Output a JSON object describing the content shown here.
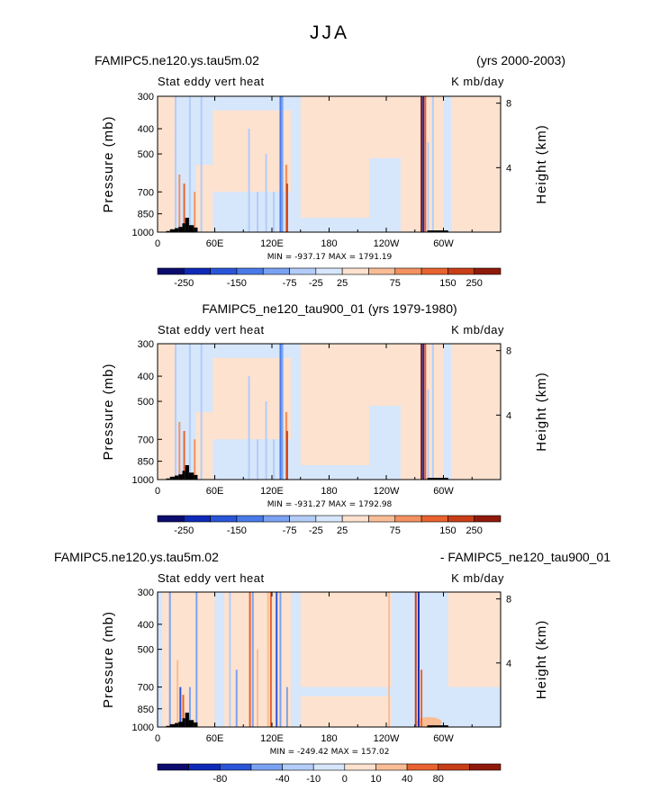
{
  "figure_title": "JJA",
  "colors": {
    "div12": [
      "#0b0c6e",
      "#0f2ab8",
      "#2a55d8",
      "#4a7ae8",
      "#7ba2f2",
      "#b3cdf8",
      "#d6e6fb",
      "#fde2cf",
      "#f9bd96",
      "#f39260",
      "#e8632f",
      "#c83e17",
      "#8f1a0a"
    ],
    "div11": [
      "#0b0c6e",
      "#0f2ab8",
      "#2a55d8",
      "#7ba2f2",
      "#b3cdf8",
      "#d6e6fb",
      "#fde2cf",
      "#f9bd96",
      "#e8632f",
      "#c83e17",
      "#8f1a0a"
    ],
    "topography": "#000000"
  },
  "chart_data": [
    {
      "type": "heatmap",
      "left_title": "FAMIPC5.ne120.ys.tau5m.02",
      "right_title": "(yrs 2000-2003)",
      "center_title": "",
      "variable_label": "Stat eddy vert heat",
      "units": "K mb/day",
      "ylabel": "Pressure (mb)",
      "ylabel_right": "Height (km)",
      "x_ticks": [
        "0",
        "60E",
        "120E",
        "180",
        "120W",
        "60W"
      ],
      "y_ticks": [
        "300",
        "400",
        "500",
        "700",
        "850",
        "1000"
      ],
      "height_ticks": [
        "8",
        "4"
      ],
      "stats_text": "MIN = -937.17   MAX = 1791.19",
      "colorbar_labels": [
        "-250",
        "-150",
        "-75",
        "-25",
        "25",
        "75",
        "150",
        "250"
      ],
      "levels": [
        -250,
        -200,
        -150,
        -100,
        -75,
        -50,
        -25,
        25,
        50,
        75,
        100,
        150,
        200,
        250
      ],
      "min": -937.17,
      "max": 1791.19
    },
    {
      "type": "heatmap",
      "left_title": "",
      "right_title": "",
      "center_title": "FAMIPC5_ne120_tau900_01 (yrs 1979-1980)",
      "variable_label": "Stat eddy vert heat",
      "units": "K mb/day",
      "ylabel": "Pressure (mb)",
      "ylabel_right": "Height (km)",
      "x_ticks": [
        "0",
        "60E",
        "120E",
        "180",
        "120W",
        "60W"
      ],
      "y_ticks": [
        "300",
        "400",
        "500",
        "700",
        "850",
        "1000"
      ],
      "height_ticks": [
        "8",
        "4"
      ],
      "stats_text": "MIN = -931.27   MAX = 1792.98",
      "colorbar_labels": [
        "-250",
        "-150",
        "-75",
        "-25",
        "25",
        "75",
        "150",
        "250"
      ],
      "levels": [
        -250,
        -200,
        -150,
        -100,
        -75,
        -50,
        -25,
        25,
        50,
        75,
        100,
        150,
        200,
        250
      ],
      "min": -931.27,
      "max": 1792.98
    },
    {
      "type": "heatmap",
      "left_title": "FAMIPC5.ne120.ys.tau5m.02",
      "right_title": "- FAMIPC5_ne120_tau900_01",
      "center_title": "",
      "variable_label": "Stat eddy vert heat",
      "units": "K mb/day",
      "ylabel": "Pressure (mb)",
      "ylabel_right": "Height (km)",
      "x_ticks": [
        "0",
        "60E",
        "120E",
        "180",
        "120W",
        "60W"
      ],
      "y_ticks": [
        "300",
        "400",
        "500",
        "700",
        "850",
        "1000"
      ],
      "height_ticks": [
        "8",
        "4"
      ],
      "stats_text": "MIN = -249.42   MAX = 157.02",
      "colorbar_labels": [
        "-80",
        "-40",
        "-10",
        "0",
        "10",
        "40",
        "80"
      ],
      "levels": [
        -120,
        -80,
        -60,
        -40,
        -20,
        -10,
        0,
        10,
        20,
        40,
        60,
        80,
        120
      ],
      "min": -249.42,
      "max": 157.02
    }
  ]
}
